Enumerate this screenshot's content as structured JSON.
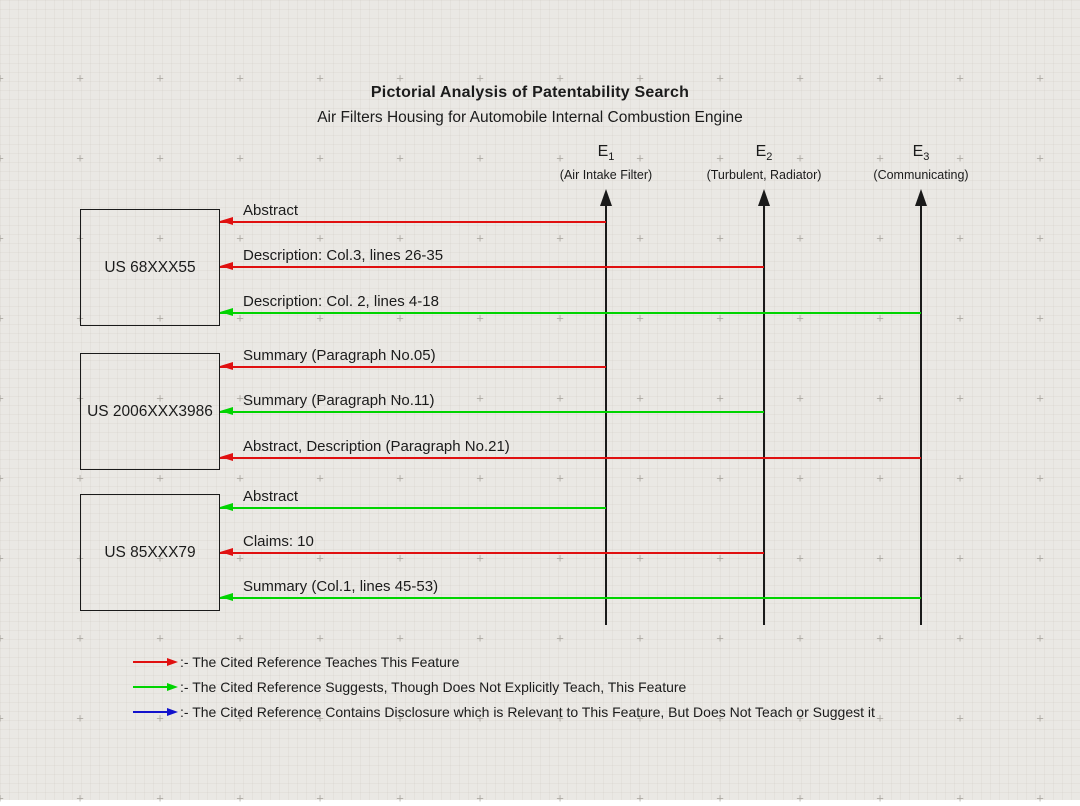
{
  "title": "Pictorial Analysis of Patentability Search",
  "subtitle": "Air Filters Housing for Automobile Internal Combustion Engine",
  "colors": {
    "teaches": "#e01010",
    "suggests": "#00d400",
    "relevant_only": "#1212cc",
    "line": "#1a1a1a"
  },
  "elements": [
    {
      "id": "E1",
      "base": "E",
      "sub": "1",
      "desc": "(Air Intake Filter)"
    },
    {
      "id": "E2",
      "base": "E",
      "sub": "2",
      "desc": "(Turbulent, Radiator)"
    },
    {
      "id": "E3",
      "base": "E",
      "sub": "3",
      "desc": "(Communicating)"
    }
  ],
  "references": [
    {
      "label": "US 68XXX55",
      "features": [
        {
          "text": "Abstract",
          "target": "E1",
          "relation": "teaches"
        },
        {
          "text": "Description: Col.3, lines 26-35",
          "target": "E2",
          "relation": "teaches"
        },
        {
          "text": "Description: Col. 2, lines 4-18",
          "target": "E3",
          "relation": "suggests"
        }
      ]
    },
    {
      "label": "US 2006XXX3986",
      "features": [
        {
          "text": "Summary (Paragraph No.05)",
          "target": "E1",
          "relation": "teaches"
        },
        {
          "text": "Summary (Paragraph No.11)",
          "target": "E2",
          "relation": "suggests"
        },
        {
          "text": "Abstract, Description (Paragraph No.21)",
          "target": "E3",
          "relation": "teaches"
        }
      ]
    },
    {
      "label": "US 85XXX79",
      "features": [
        {
          "text": "Abstract",
          "target": "E1",
          "relation": "suggests"
        },
        {
          "text": "Claims: 10",
          "target": "E2",
          "relation": "teaches"
        },
        {
          "text": "Summary (Col.1, lines 45-53)",
          "target": "E3",
          "relation": "suggests"
        }
      ]
    }
  ],
  "legend": [
    {
      "relation": "teaches",
      "text": ":- The Cited Reference Teaches This Feature"
    },
    {
      "relation": "suggests",
      "text": ":- The Cited Reference Suggests, Though Does Not Explicitly Teach, This Feature"
    },
    {
      "relation": "relevant_only",
      "text": ":- The Cited Reference Contains Disclosure which is Relevant to This Feature, But Does Not Teach or Suggest it"
    }
  ]
}
